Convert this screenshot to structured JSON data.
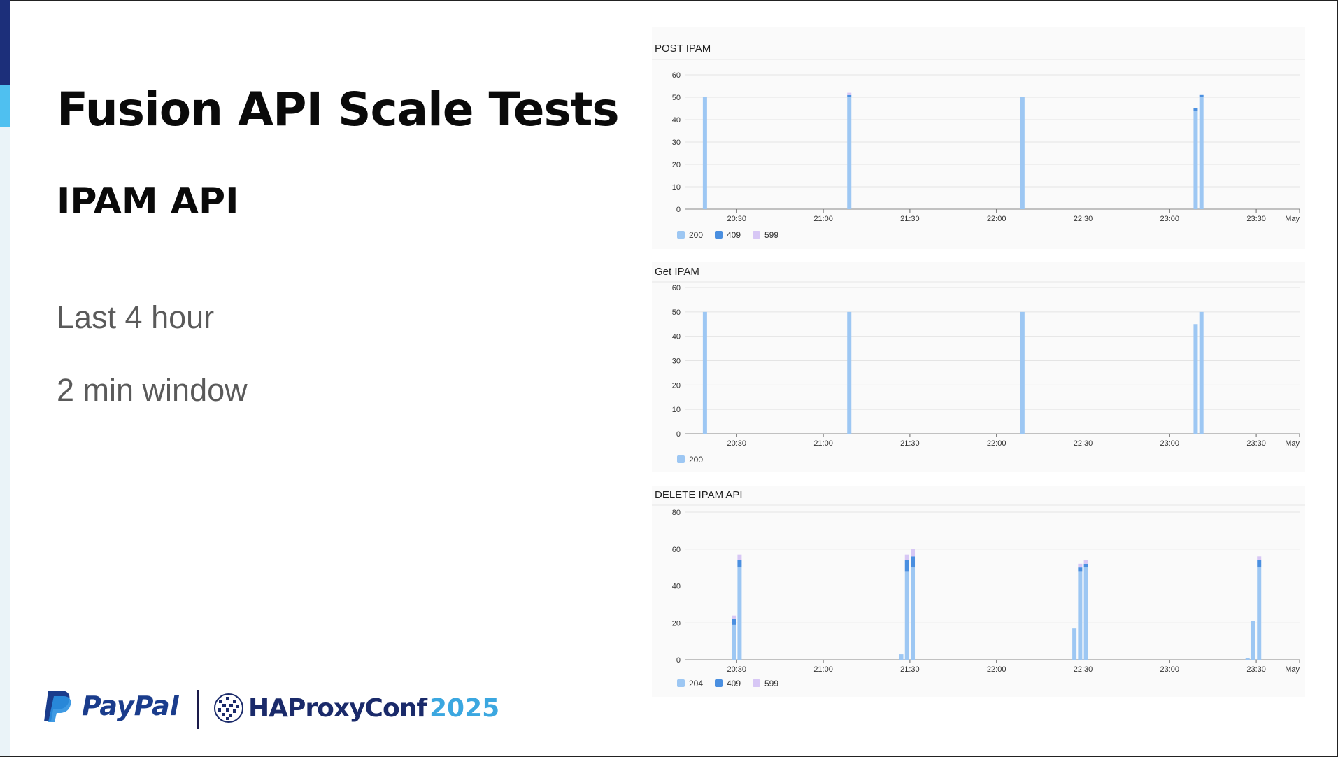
{
  "slide": {
    "title": "Fusion API Scale Tests",
    "subtitle": "IPAM API",
    "notes": [
      "Last 4 hour",
      "2 min window"
    ],
    "footer": {
      "paypal": "PayPal",
      "haproxy": "HAProxyConf",
      "year": "2025"
    }
  },
  "colors": {
    "s200": "#9dc7f3",
    "s409": "#4a8fe0",
    "s599": "#d7c7f5",
    "s204": "#9dc7f3"
  },
  "chart_data": [
    {
      "type": "bar",
      "title": "POST IPAM",
      "x_ticks": [
        "20:30",
        "21:00",
        "21:30",
        "22:00",
        "22:30",
        "23:00",
        "23:30",
        "May"
      ],
      "x_range": [
        "20:12",
        "23:45"
      ],
      "ylim": [
        0,
        60
      ],
      "y_ticks": [
        0,
        10,
        20,
        30,
        40,
        50,
        60
      ],
      "grid": true,
      "legend": "bottom-left",
      "series_names": [
        "200",
        "409",
        "599"
      ],
      "bars": [
        {
          "x": "20:19",
          "200": 50,
          "409": 0,
          "599": 0
        },
        {
          "x": "21:09",
          "200": 50,
          "409": 1,
          "599": 1
        },
        {
          "x": "22:09",
          "200": 50,
          "409": 0,
          "599": 0
        },
        {
          "x": "23:09",
          "200": 44,
          "409": 1,
          "599": 0
        },
        {
          "x": "23:11",
          "200": 50,
          "409": 1,
          "599": 0
        }
      ]
    },
    {
      "type": "bar",
      "title": "Get IPAM",
      "x_ticks": [
        "20:30",
        "21:00",
        "21:30",
        "22:00",
        "22:30",
        "23:00",
        "23:30",
        "May"
      ],
      "x_range": [
        "20:12",
        "23:45"
      ],
      "ylim": [
        0,
        60
      ],
      "y_ticks": [
        0,
        10,
        20,
        30,
        40,
        50,
        60
      ],
      "grid": true,
      "legend": "bottom-left",
      "series_names": [
        "200"
      ],
      "bars": [
        {
          "x": "20:19",
          "200": 50
        },
        {
          "x": "21:09",
          "200": 50
        },
        {
          "x": "22:09",
          "200": 50
        },
        {
          "x": "23:09",
          "200": 45
        },
        {
          "x": "23:11",
          "200": 50
        }
      ]
    },
    {
      "type": "bar",
      "title": "DELETE IPAM API",
      "x_ticks": [
        "20:30",
        "21:00",
        "21:30",
        "22:00",
        "22:30",
        "23:00",
        "23:30",
        "May"
      ],
      "x_range": [
        "20:12",
        "23:45"
      ],
      "ylim": [
        0,
        80
      ],
      "y_ticks": [
        0,
        20,
        40,
        60,
        80
      ],
      "grid": true,
      "legend": "bottom-left",
      "series_names": [
        "204",
        "409",
        "599"
      ],
      "bars": [
        {
          "x": "20:29",
          "204": 19,
          "409": 3,
          "599": 2
        },
        {
          "x": "20:31",
          "204": 50,
          "409": 4,
          "599": 3
        },
        {
          "x": "21:27",
          "204": 3,
          "409": 0,
          "599": 0
        },
        {
          "x": "21:29",
          "204": 48,
          "409": 6,
          "599": 3
        },
        {
          "x": "21:31",
          "204": 50,
          "409": 6,
          "599": 4
        },
        {
          "x": "22:27",
          "204": 17,
          "409": 0,
          "599": 0
        },
        {
          "x": "22:29",
          "204": 48,
          "409": 2,
          "599": 2
        },
        {
          "x": "22:31",
          "204": 50,
          "409": 2,
          "599": 2
        },
        {
          "x": "23:27",
          "204": 1,
          "409": 0,
          "599": 0
        },
        {
          "x": "23:29",
          "204": 21,
          "409": 0,
          "599": 0
        },
        {
          "x": "23:31",
          "204": 50,
          "409": 4,
          "599": 2
        }
      ]
    }
  ]
}
